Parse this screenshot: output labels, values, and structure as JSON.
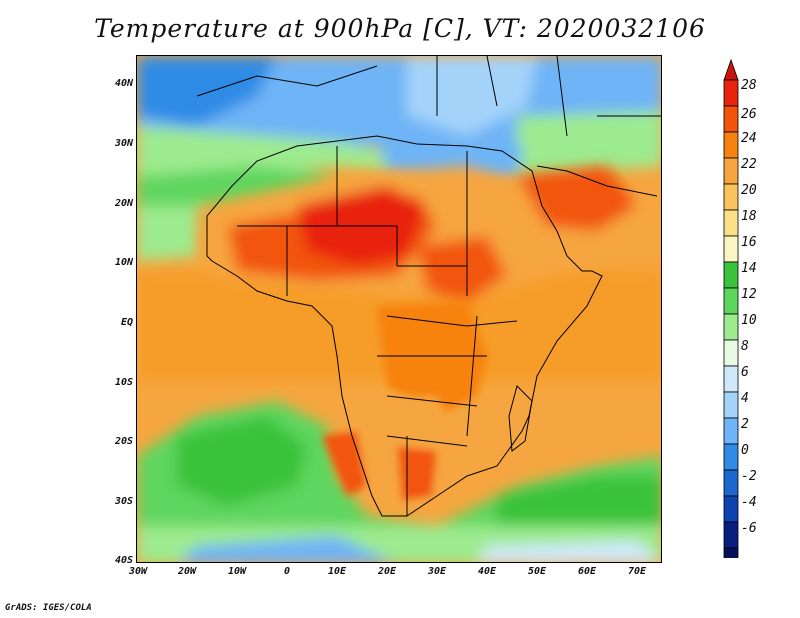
{
  "title": "Temperature at 900hPa [C], VT: 2020032106",
  "credit": "GrADS: IGES/COLA",
  "map": {
    "lon_range": [
      -30,
      75
    ],
    "lat_range": [
      -40,
      45
    ],
    "lat_labels": [
      "40N",
      "30N",
      "20N",
      "10N",
      "EQ",
      "10S",
      "20S",
      "30S",
      "40S"
    ],
    "lon_labels": [
      "30W",
      "20W",
      "10W",
      "0",
      "10E",
      "20E",
      "30E",
      "40E",
      "50E",
      "60E",
      "70E"
    ]
  },
  "colorbar": {
    "labels": [
      "28",
      "26",
      "24",
      "22",
      "20",
      "18",
      "16",
      "14",
      "12",
      "10",
      "8",
      "6",
      "4",
      "2",
      "0",
      "-2",
      "-4",
      "-6"
    ],
    "colors": [
      "#e8240c",
      "#f2540c",
      "#f7820f",
      "#f6a640",
      "#f9c35d",
      "#fbe08a",
      "#fbf5c3",
      "#3ac23a",
      "#5ed65e",
      "#9deb8f",
      "#e7fbe3",
      "#cfe9fb",
      "#a4d3fa",
      "#6eb4f6",
      "#2f8be6",
      "#1d67cf",
      "#0e42b0",
      "#081f80",
      "#06105a"
    ],
    "over_color": "#c81608",
    "under_color": "#e8e8ff"
  }
}
